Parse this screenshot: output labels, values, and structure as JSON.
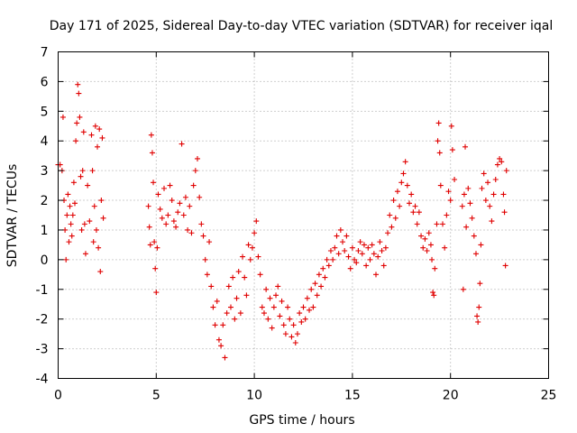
{
  "chart_data": {
    "type": "scatter",
    "title": "Day 171 of 2025, Sidereal Day-to-day VTEC variation (SDTVAR) for receiver iqal",
    "xlabel": "GPS time / hours",
    "ylabel": "SDTVAR / TECUs",
    "xlim": [
      0,
      25
    ],
    "ylim": [
      -4,
      7
    ],
    "xticks": [
      0,
      5,
      10,
      15,
      20,
      25
    ],
    "yticks": [
      -4,
      -3,
      -2,
      -1,
      0,
      1,
      2,
      3,
      4,
      5,
      6,
      7
    ],
    "xtick_labels": [
      "0",
      "5",
      "10",
      "15",
      "20",
      "25"
    ],
    "ytick_labels": [
      "-4",
      "-3",
      "-2",
      "-1",
      "0",
      "1",
      "2",
      "3",
      "4",
      "5",
      "6",
      "7"
    ],
    "grid": true,
    "marker": "+",
    "color": "#e00000",
    "series": [
      {
        "name": "SDTVAR",
        "points": [
          [
            0.0,
            3.2
          ],
          [
            0.1,
            3.2
          ],
          [
            0.2,
            3.0
          ],
          [
            0.25,
            4.8
          ],
          [
            0.3,
            2.0
          ],
          [
            0.35,
            1.0
          ],
          [
            0.4,
            0.0
          ],
          [
            0.45,
            1.5
          ],
          [
            0.5,
            2.2
          ],
          [
            0.55,
            0.6
          ],
          [
            0.6,
            1.8
          ],
          [
            0.65,
            1.2
          ],
          [
            0.7,
            0.8
          ],
          [
            0.75,
            1.5
          ],
          [
            0.8,
            2.6
          ],
          [
            0.85,
            1.9
          ],
          [
            0.9,
            4.0
          ],
          [
            0.95,
            4.6
          ],
          [
            1.0,
            5.9
          ],
          [
            1.05,
            5.6
          ],
          [
            1.1,
            4.8
          ],
          [
            1.15,
            2.8
          ],
          [
            1.2,
            1.0
          ],
          [
            1.25,
            3.0
          ],
          [
            1.3,
            4.3
          ],
          [
            1.35,
            1.2
          ],
          [
            1.4,
            0.2
          ],
          [
            1.5,
            2.5
          ],
          [
            1.6,
            1.3
          ],
          [
            1.7,
            4.2
          ],
          [
            1.75,
            3.0
          ],
          [
            1.8,
            0.6
          ],
          [
            1.85,
            1.8
          ],
          [
            1.9,
            4.5
          ],
          [
            1.95,
            1.0
          ],
          [
            2.0,
            3.8
          ],
          [
            2.05,
            0.4
          ],
          [
            2.1,
            4.4
          ],
          [
            2.15,
            -0.4
          ],
          [
            2.2,
            2.0
          ],
          [
            2.25,
            4.1
          ],
          [
            2.3,
            1.4
          ],
          [
            4.6,
            1.8
          ],
          [
            4.65,
            1.1
          ],
          [
            4.7,
            0.5
          ],
          [
            4.75,
            4.2
          ],
          [
            4.8,
            3.6
          ],
          [
            4.85,
            2.6
          ],
          [
            4.9,
            0.6
          ],
          [
            4.95,
            -0.3
          ],
          [
            5.0,
            -1.1
          ],
          [
            5.05,
            0.4
          ],
          [
            5.1,
            2.2
          ],
          [
            5.2,
            1.7
          ],
          [
            5.3,
            1.4
          ],
          [
            5.4,
            2.4
          ],
          [
            5.5,
            1.2
          ],
          [
            5.6,
            1.5
          ],
          [
            5.7,
            2.5
          ],
          [
            5.8,
            2.0
          ],
          [
            5.9,
            1.3
          ],
          [
            6.0,
            1.1
          ],
          [
            6.1,
            1.6
          ],
          [
            6.2,
            1.9
          ],
          [
            6.3,
            3.9
          ],
          [
            6.4,
            1.5
          ],
          [
            6.5,
            2.1
          ],
          [
            6.6,
            1.0
          ],
          [
            6.7,
            1.8
          ],
          [
            6.8,
            0.9
          ],
          [
            6.9,
            2.5
          ],
          [
            7.0,
            3.0
          ],
          [
            7.1,
            3.4
          ],
          [
            7.2,
            2.1
          ],
          [
            7.3,
            1.2
          ],
          [
            7.4,
            0.8
          ],
          [
            7.5,
            0.0
          ],
          [
            7.6,
            -0.5
          ],
          [
            7.7,
            0.6
          ],
          [
            7.8,
            -0.9
          ],
          [
            7.9,
            -1.6
          ],
          [
            8.0,
            -2.2
          ],
          [
            8.1,
            -1.4
          ],
          [
            8.2,
            -2.7
          ],
          [
            8.3,
            -2.9
          ],
          [
            8.4,
            -2.2
          ],
          [
            8.5,
            -3.3
          ],
          [
            8.6,
            -1.8
          ],
          [
            8.7,
            -0.9
          ],
          [
            8.8,
            -1.6
          ],
          [
            8.9,
            -0.6
          ],
          [
            9.0,
            -2.0
          ],
          [
            9.1,
            -1.3
          ],
          [
            9.2,
            -0.4
          ],
          [
            9.3,
            -1.8
          ],
          [
            9.4,
            0.1
          ],
          [
            9.5,
            -0.6
          ],
          [
            9.6,
            -1.2
          ],
          [
            9.7,
            0.5
          ],
          [
            9.8,
            0.0
          ],
          [
            9.9,
            0.4
          ],
          [
            10.0,
            0.9
          ],
          [
            10.1,
            1.3
          ],
          [
            10.2,
            0.1
          ],
          [
            10.3,
            -0.5
          ],
          [
            10.4,
            -1.6
          ],
          [
            10.5,
            -1.8
          ],
          [
            10.6,
            -1.0
          ],
          [
            10.7,
            -2.0
          ],
          [
            10.8,
            -1.3
          ],
          [
            10.9,
            -2.3
          ],
          [
            11.0,
            -1.6
          ],
          [
            11.1,
            -1.2
          ],
          [
            11.2,
            -0.9
          ],
          [
            11.3,
            -1.9
          ],
          [
            11.4,
            -1.4
          ],
          [
            11.5,
            -2.2
          ],
          [
            11.6,
            -2.5
          ],
          [
            11.7,
            -1.6
          ],
          [
            11.8,
            -2.0
          ],
          [
            11.9,
            -2.6
          ],
          [
            12.0,
            -2.2
          ],
          [
            12.1,
            -2.8
          ],
          [
            12.2,
            -2.5
          ],
          [
            12.3,
            -1.8
          ],
          [
            12.4,
            -2.1
          ],
          [
            12.5,
            -1.6
          ],
          [
            12.6,
            -2.0
          ],
          [
            12.7,
            -1.3
          ],
          [
            12.8,
            -1.7
          ],
          [
            12.9,
            -1.0
          ],
          [
            13.0,
            -1.6
          ],
          [
            13.1,
            -0.8
          ],
          [
            13.2,
            -1.2
          ],
          [
            13.3,
            -0.5
          ],
          [
            13.4,
            -0.9
          ],
          [
            13.5,
            -0.3
          ],
          [
            13.6,
            -0.6
          ],
          [
            13.7,
            0.0
          ],
          [
            13.8,
            -0.2
          ],
          [
            13.9,
            0.3
          ],
          [
            14.0,
            0.0
          ],
          [
            14.1,
            0.4
          ],
          [
            14.2,
            0.8
          ],
          [
            14.3,
            0.2
          ],
          [
            14.4,
            1.0
          ],
          [
            14.5,
            0.6
          ],
          [
            14.6,
            0.3
          ],
          [
            14.7,
            0.8
          ],
          [
            14.8,
            0.1
          ],
          [
            14.9,
            -0.3
          ],
          [
            15.0,
            0.4
          ],
          [
            15.1,
            0.0
          ],
          [
            15.2,
            -0.1
          ],
          [
            15.3,
            0.3
          ],
          [
            15.4,
            0.6
          ],
          [
            15.5,
            0.2
          ],
          [
            15.6,
            0.5
          ],
          [
            15.7,
            -0.2
          ],
          [
            15.8,
            0.4
          ],
          [
            15.9,
            0.0
          ],
          [
            16.0,
            0.5
          ],
          [
            16.1,
            0.2
          ],
          [
            16.2,
            -0.5
          ],
          [
            16.3,
            0.1
          ],
          [
            16.4,
            0.6
          ],
          [
            16.5,
            0.3
          ],
          [
            16.6,
            -0.2
          ],
          [
            16.7,
            0.4
          ],
          [
            16.8,
            0.9
          ],
          [
            16.9,
            1.5
          ],
          [
            17.0,
            1.1
          ],
          [
            17.1,
            2.0
          ],
          [
            17.2,
            1.4
          ],
          [
            17.3,
            2.3
          ],
          [
            17.4,
            1.8
          ],
          [
            17.5,
            2.6
          ],
          [
            17.6,
            2.9
          ],
          [
            17.7,
            3.3
          ],
          [
            17.8,
            2.5
          ],
          [
            17.9,
            1.9
          ],
          [
            18.0,
            2.2
          ],
          [
            18.1,
            1.6
          ],
          [
            18.2,
            1.8
          ],
          [
            18.3,
            1.2
          ],
          [
            18.4,
            1.6
          ],
          [
            18.5,
            0.8
          ],
          [
            18.6,
            0.4
          ],
          [
            18.7,
            0.7
          ],
          [
            18.8,
            0.3
          ],
          [
            18.9,
            0.9
          ],
          [
            19.0,
            0.5
          ],
          [
            19.05,
            0.0
          ],
          [
            19.1,
            -1.1
          ],
          [
            19.15,
            -1.2
          ],
          [
            19.2,
            -0.3
          ],
          [
            19.3,
            1.2
          ],
          [
            19.35,
            4.0
          ],
          [
            19.4,
            4.6
          ],
          [
            19.45,
            3.6
          ],
          [
            19.5,
            2.5
          ],
          [
            19.6,
            1.2
          ],
          [
            19.7,
            0.4
          ],
          [
            19.8,
            1.5
          ],
          [
            19.9,
            2.3
          ],
          [
            20.0,
            2.0
          ],
          [
            20.05,
            4.5
          ],
          [
            20.1,
            3.7
          ],
          [
            20.2,
            2.7
          ],
          [
            20.6,
            1.8
          ],
          [
            20.65,
            -1.0
          ],
          [
            20.7,
            2.2
          ],
          [
            20.75,
            3.8
          ],
          [
            20.8,
            1.1
          ],
          [
            20.9,
            2.4
          ],
          [
            21.0,
            1.9
          ],
          [
            21.1,
            1.4
          ],
          [
            21.2,
            0.8
          ],
          [
            21.3,
            0.2
          ],
          [
            21.35,
            -1.9
          ],
          [
            21.4,
            -2.1
          ],
          [
            21.45,
            -1.6
          ],
          [
            21.5,
            -0.8
          ],
          [
            21.55,
            0.5
          ],
          [
            21.6,
            2.4
          ],
          [
            21.7,
            2.9
          ],
          [
            21.8,
            2.0
          ],
          [
            21.9,
            2.6
          ],
          [
            22.0,
            1.8
          ],
          [
            22.1,
            1.3
          ],
          [
            22.2,
            2.2
          ],
          [
            22.3,
            2.7
          ],
          [
            22.4,
            3.2
          ],
          [
            22.5,
            3.4
          ],
          [
            22.6,
            3.3
          ],
          [
            22.7,
            2.2
          ],
          [
            22.75,
            1.6
          ],
          [
            22.8,
            -0.2
          ],
          [
            22.85,
            3.0
          ]
        ]
      }
    ]
  }
}
